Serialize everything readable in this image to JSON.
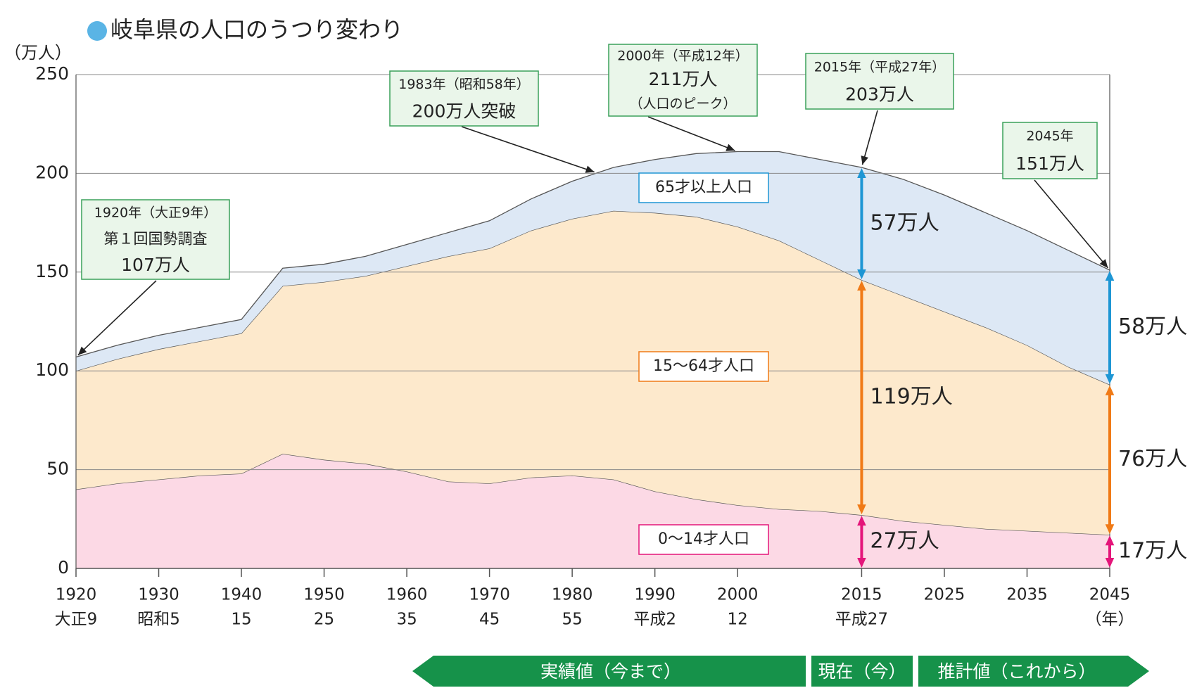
{
  "chart_data": {
    "type": "area",
    "stacked": true,
    "title": "岐阜県の人口のうつり変わり",
    "ylabel": "（万人）",
    "x": [
      1920,
      1925,
      1930,
      1935,
      1940,
      1945,
      1950,
      1955,
      1960,
      1965,
      1970,
      1975,
      1980,
      1985,
      1990,
      1995,
      2000,
      2005,
      2010,
      2015,
      2020,
      2025,
      2030,
      2035,
      2040,
      2045
    ],
    "xlim": [
      1920,
      2045
    ],
    "ylim": [
      0,
      250
    ],
    "yticks": [
      0,
      50,
      100,
      150,
      200,
      250
    ],
    "xticks": [
      1920,
      1930,
      1940,
      1950,
      1960,
      1970,
      1980,
      1990,
      2000,
      2015,
      2025,
      2035,
      2045
    ],
    "xtick_sublabels": [
      "大正9",
      "昭和5",
      "15",
      "25",
      "35",
      "45",
      "55",
      "平成2",
      "12",
      "平成27",
      null,
      null,
      "（年）"
    ],
    "grid": true,
    "series": [
      {
        "name": "0〜14才人口",
        "color": "#fcd9e5",
        "accent": "#e4157a",
        "values": [
          40,
          43,
          45,
          47,
          48,
          58,
          55,
          53,
          49,
          44,
          43,
          46,
          47,
          45,
          39,
          35,
          32,
          30,
          29,
          27,
          24,
          22,
          20,
          19,
          18,
          17
        ],
        "value_labels": [
          null,
          null,
          null,
          null,
          null,
          null,
          null,
          null,
          null,
          null,
          null,
          null,
          null,
          null,
          null,
          null,
          null,
          null,
          null,
          "27万人",
          null,
          null,
          null,
          null,
          null,
          "17万人"
        ]
      },
      {
        "name": "15〜64才人口",
        "color": "#fde9cc",
        "accent": "#f07a16",
        "values": [
          60,
          63,
          66,
          68,
          71,
          85,
          90,
          95,
          104,
          114,
          119,
          125,
          130,
          136,
          141,
          143,
          141,
          136,
          127,
          119,
          114,
          108,
          102,
          94,
          84,
          76
        ],
        "value_labels": [
          null,
          null,
          null,
          null,
          null,
          null,
          null,
          null,
          null,
          null,
          null,
          null,
          null,
          null,
          null,
          null,
          null,
          null,
          null,
          "119万人",
          null,
          null,
          null,
          null,
          null,
          "76万人"
        ]
      },
      {
        "name": "65才以上人口",
        "color": "#dde8f5",
        "accent": "#1e96d4",
        "values": [
          7,
          7,
          7,
          7,
          7,
          9,
          9,
          10,
          11,
          12,
          14,
          16,
          19,
          22,
          27,
          32,
          38,
          45,
          51,
          57,
          59,
          59,
          58,
          58,
          59,
          58
        ],
        "value_labels": [
          null,
          null,
          null,
          null,
          null,
          null,
          null,
          null,
          null,
          null,
          null,
          null,
          null,
          null,
          null,
          null,
          null,
          null,
          null,
          "57万人",
          null,
          null,
          null,
          null,
          null,
          "58万人"
        ]
      }
    ],
    "annotations": [
      {
        "x": 1920,
        "texts": [
          "1920年（大正9年）",
          "第１回国勢調査",
          "107万人"
        ]
      },
      {
        "x": 1983,
        "texts": [
          "1983年（昭和58年）",
          "200万人突破"
        ]
      },
      {
        "x": 2000,
        "texts": [
          "2000年（平成12年）",
          "211万人",
          "（人口のピーク）"
        ]
      },
      {
        "x": 2015,
        "texts": [
          "2015年（平成27年）",
          "203万人"
        ]
      },
      {
        "x": 2045,
        "texts": [
          "2045年",
          "151万人"
        ]
      }
    ],
    "periods": [
      "実績値（今まで）",
      "現在（今）",
      "推計値（これから）"
    ]
  }
}
